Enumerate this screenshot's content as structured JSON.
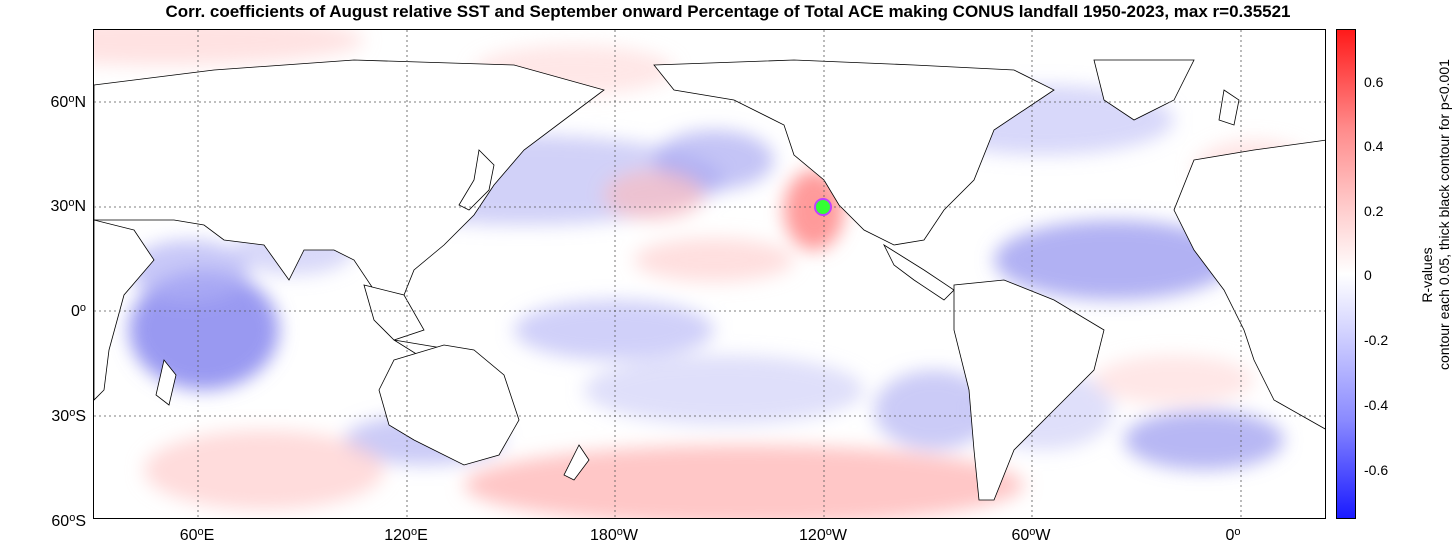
{
  "title": "Corr. coefficients of August relative SST and September onward Percentage of Total ACE making CONUS landfall 1950-2023, max r=0.35521",
  "map": {
    "lat_labels": [
      {
        "value": "60",
        "hemi": "N"
      },
      {
        "value": "30",
        "hemi": "N"
      },
      {
        "value": "0",
        "hemi": ""
      },
      {
        "value": "30",
        "hemi": "S"
      },
      {
        "value": "60",
        "hemi": "S"
      }
    ],
    "lon_labels": [
      {
        "value": "60",
        "hemi": "E"
      },
      {
        "value": "120",
        "hemi": "E"
      },
      {
        "value": "180",
        "hemi": "W"
      },
      {
        "value": "120",
        "hemi": "W"
      },
      {
        "value": "60",
        "hemi": "W"
      },
      {
        "value": "0",
        "hemi": ""
      }
    ],
    "marker_color": "#33ff33",
    "marker_ring_color": "#c040ff"
  },
  "colorbar": {
    "ticks": [
      "0.6",
      "0.4",
      "0.2",
      "0",
      "-0.2",
      "-0.4",
      "-0.6"
    ],
    "label_line1": "R-values",
    "label_line2": "contour each 0.05, thick black contour for p<0.001",
    "max_color": "#ff1a1a",
    "min_color": "#1a1aff"
  }
}
